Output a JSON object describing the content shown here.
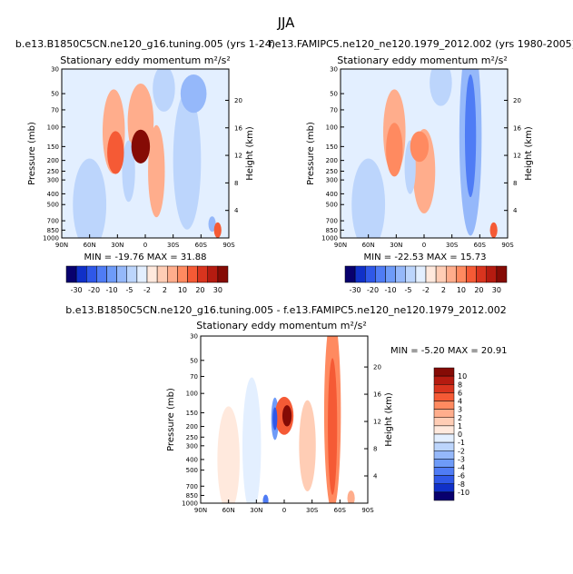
{
  "season": "JJA",
  "panels": [
    {
      "id": "top-left",
      "run_title": "b.e13.B1850C5CN.ne120_g16.tuning.005 (yrs 1-24)",
      "var_title": "Stationary eddy momentum",
      "units": "m²/s²",
      "min_label": "MIN = -19.76",
      "max_label": "MAX = 31.88"
    },
    {
      "id": "top-right",
      "run_title": "f.e13.FAMIPC5.ne120_ne120.1979_2012.002 (yrs 1980-2005)",
      "var_title": "Stationary eddy momentum",
      "units": "m²/s²",
      "min_label": "MIN = -22.53",
      "max_label": "MAX = 15.73"
    },
    {
      "id": "bottom",
      "run_title": "b.e13.B1850C5CN.ne120_g16.tuning.005 - f.e13.FAMIPC5.ne120_ne120.1979_2012.002",
      "var_title": "Stationary eddy momentum",
      "units": "m²/s²",
      "min_label": "MIN = -5.20",
      "max_label": "MAX = 20.91"
    }
  ],
  "chart_data": {
    "type": "heatmap",
    "xlabel": "",
    "ylabel_left": "Pressure (mb)",
    "ylabel_right": "Height (km)",
    "x_ticks": [
      "90N",
      "60N",
      "30N",
      "0",
      "30S",
      "60S",
      "90S"
    ],
    "x_range": [
      90,
      -90
    ],
    "y_ticks_pressure": [
      30,
      50,
      70,
      100,
      150,
      200,
      250,
      300,
      400,
      500,
      700,
      850,
      1000
    ],
    "y_range_pressure": [
      30,
      1000
    ],
    "y_ticks_height_km": [
      4,
      8,
      12,
      16,
      20
    ],
    "colorbar_top": {
      "labels": [
        "-30",
        "-20",
        "-10",
        "-5",
        "-2",
        "2",
        "10",
        "20",
        "30"
      ],
      "colors": [
        "#08006e",
        "#1030c8",
        "#2f58e8",
        "#4f7cf5",
        "#6e9bf8",
        "#95b8fa",
        "#bcd5fc",
        "#e3efff",
        "#ffe9dd",
        "#ffcdb5",
        "#ffad8c",
        "#ff8a60",
        "#f55a35",
        "#d9341e",
        "#b51b10",
        "#850b05"
      ]
    },
    "colorbar_bottom": {
      "labels": [
        "10",
        "8",
        "6",
        "4",
        "3",
        "2",
        "1",
        "0",
        "-1",
        "-2",
        "-3",
        "-4",
        "-6",
        "-8",
        "-10"
      ],
      "colors": [
        "#850b05",
        "#b51b10",
        "#d9341e",
        "#f55a35",
        "#ff8a60",
        "#ffad8c",
        "#ffcdb5",
        "#ffe9dd",
        "#e3efff",
        "#bcd5fc",
        "#95b8fa",
        "#6e9bf8",
        "#4f7cf5",
        "#2f58e8",
        "#1030c8",
        "#08006e"
      ]
    },
    "features": {
      "top-left": [
        {
          "lat": 60,
          "p": 500,
          "value": -2,
          "rx_deg": 18,
          "ry_frac": 0.6
        },
        {
          "lat": 32,
          "p": 170,
          "value": 10,
          "rx_deg": 9,
          "ry_frac": 0.28
        },
        {
          "lat": 34,
          "p": 110,
          "value": 2,
          "rx_deg": 12,
          "ry_frac": 0.55
        },
        {
          "lat": 5,
          "p": 150,
          "value": 30,
          "rx_deg": 10,
          "ry_frac": 0.22
        },
        {
          "lat": 5,
          "p": 90,
          "value": 2,
          "rx_deg": 14,
          "ry_frac": 0.5
        },
        {
          "lat": -12,
          "p": 250,
          "value": 2,
          "rx_deg": 9,
          "ry_frac": 0.6
        },
        {
          "lat": 18,
          "p": 250,
          "value": -2,
          "rx_deg": 7,
          "ry_frac": 0.4
        },
        {
          "lat": -45,
          "p": 200,
          "value": -2,
          "rx_deg": 15,
          "ry_frac": 0.9
        },
        {
          "lat": -20,
          "p": 45,
          "value": -2,
          "rx_deg": 12,
          "ry_frac": 0.3
        },
        {
          "lat": -52,
          "p": 50,
          "value": -5,
          "rx_deg": 14,
          "ry_frac": 0.25
        },
        {
          "lat": -78,
          "p": 850,
          "value": 10,
          "rx_deg": 4,
          "ry_frac": 0.1
        },
        {
          "lat": -72,
          "p": 750,
          "value": -5,
          "rx_deg": 4,
          "ry_frac": 0.1
        }
      ],
      "top-right": [
        {
          "lat": 60,
          "p": 500,
          "value": -2,
          "rx_deg": 18,
          "ry_frac": 0.6
        },
        {
          "lat": 32,
          "p": 160,
          "value": 5,
          "rx_deg": 9,
          "ry_frac": 0.35
        },
        {
          "lat": 32,
          "p": 110,
          "value": 2,
          "rx_deg": 12,
          "ry_frac": 0.55
        },
        {
          "lat": 5,
          "p": 150,
          "value": 5,
          "rx_deg": 10,
          "ry_frac": 0.2
        },
        {
          "lat": 0,
          "p": 250,
          "value": 2,
          "rx_deg": 12,
          "ry_frac": 0.55
        },
        {
          "lat": -50,
          "p": 120,
          "value": -5,
          "rx_deg": 12,
          "ry_frac": 1.3
        },
        {
          "lat": -50,
          "p": 120,
          "value": -10,
          "rx_deg": 6,
          "ry_frac": 0.8
        },
        {
          "lat": -18,
          "p": 40,
          "value": -2,
          "rx_deg": 12,
          "ry_frac": 0.3
        },
        {
          "lat": -75,
          "p": 850,
          "value": 10,
          "rx_deg": 4,
          "ry_frac": 0.1
        },
        {
          "lat": 15,
          "p": 230,
          "value": -2,
          "rx_deg": 6,
          "ry_frac": 0.35
        }
      ],
      "bottom": [
        {
          "lat": 60,
          "p": 400,
          "value": 0.5,
          "rx_deg": 12,
          "ry_frac": 0.7
        },
        {
          "lat": 35,
          "p": 300,
          "value": -1,
          "rx_deg": 10,
          "ry_frac": 0.9
        },
        {
          "lat": 10,
          "p": 170,
          "value": -4,
          "rx_deg": 4,
          "ry_frac": 0.28
        },
        {
          "lat": 10,
          "p": 170,
          "value": -8,
          "rx_deg": 2.5,
          "ry_frac": 0.15
        },
        {
          "lat": 0,
          "p": 160,
          "value": 4,
          "rx_deg": 10,
          "ry_frac": 0.25
        },
        {
          "lat": -3,
          "p": 160,
          "value": 10,
          "rx_deg": 5,
          "ry_frac": 0.14
        },
        {
          "lat": -25,
          "p": 300,
          "value": 1,
          "rx_deg": 9,
          "ry_frac": 0.6
        },
        {
          "lat": -52,
          "p": 150,
          "value": 3,
          "rx_deg": 9,
          "ry_frac": 1.3
        },
        {
          "lat": -52,
          "p": 200,
          "value": 4,
          "rx_deg": 5,
          "ry_frac": 0.9
        },
        {
          "lat": 20,
          "p": 950,
          "value": -6,
          "rx_deg": 3,
          "ry_frac": 0.08
        },
        {
          "lat": -72,
          "p": 900,
          "value": 2,
          "rx_deg": 4,
          "ry_frac": 0.1
        }
      ]
    }
  }
}
